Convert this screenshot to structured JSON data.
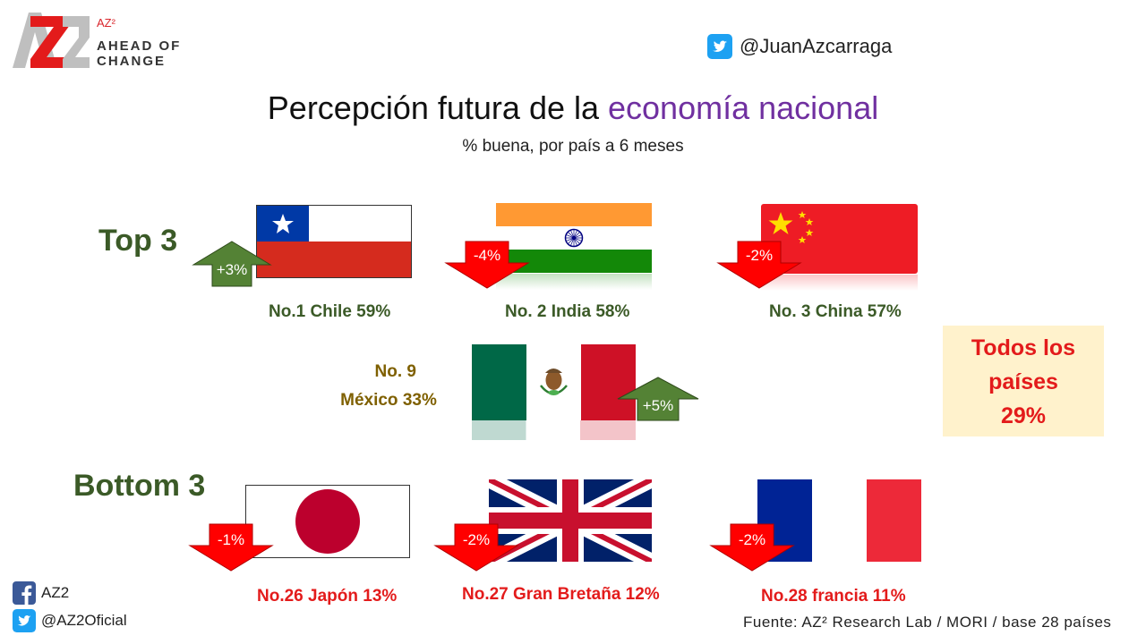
{
  "header": {
    "logo_letters": "AZ2",
    "logo_superscript": "AZ²",
    "logo_line1": "AHEAD OF",
    "logo_line2": "CHANGE",
    "twitter_handle": "@JuanAzcarraga"
  },
  "title": {
    "main": "Percepción futura de la ",
    "accent": "economía nacional",
    "subtitle": "% buena, por país a 6 meses"
  },
  "top": {
    "heading": "Top 3",
    "items": [
      {
        "label": "No.1 Chile 59%",
        "change": "+3%",
        "direction": "up"
      },
      {
        "label": "No. 2 India 58%",
        "change": "-4%",
        "direction": "down"
      },
      {
        "label": "No. 3 China 57%",
        "change": "-2%",
        "direction": "down"
      }
    ]
  },
  "mexico": {
    "line1": "No. 9",
    "line2": "México 33%",
    "change": "+5%",
    "direction": "up"
  },
  "all_countries": {
    "line1": "Todos los",
    "line2": "países",
    "line3": "29%"
  },
  "bottom": {
    "heading": "Bottom 3",
    "items": [
      {
        "label": "No.26 Japón 13%",
        "change": "-1%",
        "direction": "down"
      },
      {
        "label": "No.27 Gran Bretaña 12%",
        "change": "-2%",
        "direction": "down"
      },
      {
        "label": "No.28 francia 11%",
        "change": "-2%",
        "direction": "down"
      }
    ]
  },
  "footer": {
    "facebook": "AZ2",
    "twitter": "@AZ2Oficial",
    "source": "Fuente: AZ² Research Lab / MORI / base 28 países"
  },
  "colors": {
    "up_arrow": "#548235",
    "down_arrow": "#ff0000",
    "title_accent": "#7030a0",
    "section_green": "#3b5a27",
    "highlight_box": "#fff2cc"
  }
}
